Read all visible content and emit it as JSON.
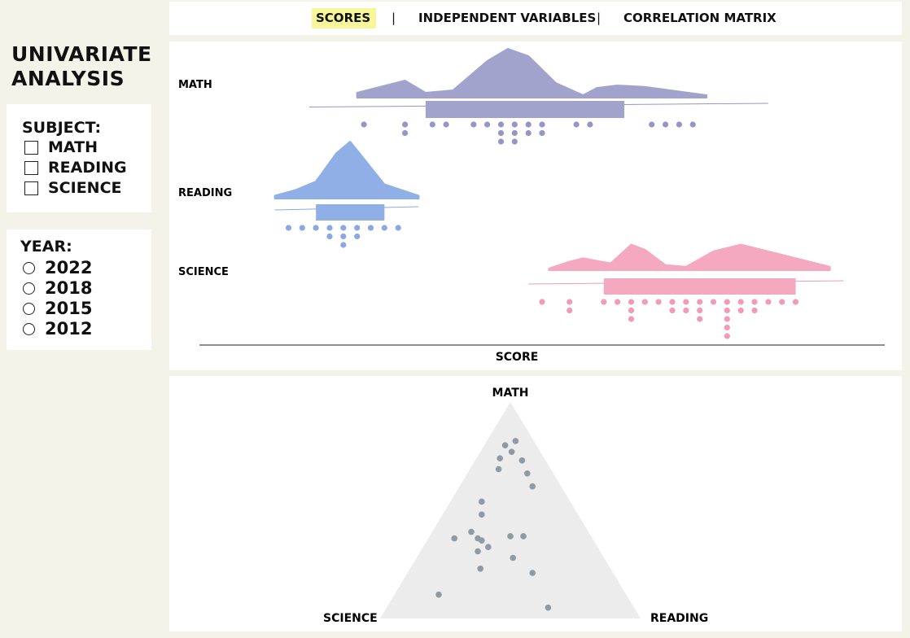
{
  "app": {
    "title": "UNIVARIATE ANALYSIS"
  },
  "nav": {
    "tabs": [
      {
        "label": "SCORES",
        "active": true
      },
      {
        "label": "INDEPENDENT VARIABLES",
        "active": false
      },
      {
        "label": "CORRELATION MATRIX",
        "active": false
      }
    ],
    "separator": "|",
    "highlight_color": "#f7f79a"
  },
  "filters": {
    "subject": {
      "heading": "SUBJECT:",
      "options": [
        {
          "label": "MATH",
          "checked": false
        },
        {
          "label": "READING",
          "checked": false
        },
        {
          "label": "SCIENCE",
          "checked": false
        }
      ]
    },
    "year": {
      "heading": "YEAR:",
      "options": [
        {
          "label": "2022",
          "selected": false
        },
        {
          "label": "2018",
          "selected": false
        },
        {
          "label": "2015",
          "selected": false
        },
        {
          "label": "2012",
          "selected": false
        }
      ]
    }
  },
  "chart_data": [
    {
      "type": "raincloud",
      "title": "",
      "xlabel": "SCORE",
      "ylabel": "",
      "xlim": [
        0,
        100
      ],
      "series": [
        {
          "name": "MATH",
          "color": "#a2a3cc",
          "dots_color": "#9496c6",
          "box": {
            "q1": 33,
            "q3": 62
          },
          "whisker": [
            16,
            83
          ],
          "density": [
            [
              23,
              0.1
            ],
            [
              30,
              0.35
            ],
            [
              33,
              0.1
            ],
            [
              37,
              0.15
            ],
            [
              42,
              0.75
            ],
            [
              45,
              1.0
            ],
            [
              48,
              0.85
            ],
            [
              52,
              0.3
            ],
            [
              56,
              0.05
            ],
            [
              58,
              0.2
            ],
            [
              61,
              0.25
            ],
            [
              65,
              0.22
            ],
            [
              74,
              0.05
            ]
          ],
          "points": [
            24,
            30,
            30,
            34,
            36,
            40,
            42,
            44,
            44,
            44,
            46,
            46,
            46,
            48,
            48,
            50,
            50,
            55,
            57,
            66,
            68,
            70,
            72
          ]
        },
        {
          "name": "READING",
          "color": "#90afe6",
          "dots_color": "#8aa9e4",
          "box": {
            "q1": 17,
            "q3": 27
          },
          "whisker": [
            11,
            32
          ],
          "density": [
            [
              11,
              0.05
            ],
            [
              14,
              0.15
            ],
            [
              17,
              0.3
            ],
            [
              20,
              0.8
            ],
            [
              22,
              1.0
            ],
            [
              24,
              0.7
            ],
            [
              27,
              0.25
            ],
            [
              32,
              0.05
            ]
          ],
          "points": [
            13,
            15,
            17,
            19,
            19,
            21,
            21,
            21,
            23,
            23,
            25,
            27,
            29
          ]
        },
        {
          "name": "SCIENCE",
          "color": "#f4a9c0",
          "dots_color": "#f19bb7",
          "box": {
            "q1": 59,
            "q3": 87
          },
          "whisker": [
            48,
            94
          ],
          "density": [
            [
              51,
              0.05
            ],
            [
              54,
              0.25
            ],
            [
              56,
              0.35
            ],
            [
              60,
              0.2
            ],
            [
              63,
              0.75
            ],
            [
              65,
              0.6
            ],
            [
              68,
              0.15
            ],
            [
              71,
              0.1
            ],
            [
              75,
              0.55
            ],
            [
              79,
              0.75
            ],
            [
              83,
              0.55
            ],
            [
              88,
              0.3
            ],
            [
              92,
              0.1
            ]
          ],
          "points": [
            50,
            54,
            54,
            59,
            61,
            63,
            63,
            63,
            65,
            67,
            69,
            69,
            71,
            71,
            73,
            73,
            73,
            75,
            77,
            77,
            77,
            77,
            77,
            79,
            79,
            81,
            81,
            83,
            85,
            87
          ]
        }
      ]
    },
    {
      "type": "ternary",
      "title": "",
      "axes": [
        "MATH",
        "READING",
        "SCIENCE"
      ],
      "fill_color": "#ececec",
      "point_color": "#8f9aa3",
      "points": [
        [
          0.82,
          0.11,
          0.07
        ],
        [
          0.8,
          0.08,
          0.12
        ],
        [
          0.77,
          0.12,
          0.11
        ],
        [
          0.74,
          0.09,
          0.17
        ],
        [
          0.73,
          0.18,
          0.09
        ],
        [
          0.69,
          0.11,
          0.2
        ],
        [
          0.67,
          0.23,
          0.1
        ],
        [
          0.61,
          0.28,
          0.11
        ],
        [
          0.54,
          0.12,
          0.34
        ],
        [
          0.48,
          0.15,
          0.37
        ],
        [
          0.4,
          0.15,
          0.45
        ],
        [
          0.37,
          0.1,
          0.53
        ],
        [
          0.38,
          0.31,
          0.31
        ],
        [
          0.38,
          0.36,
          0.26
        ],
        [
          0.37,
          0.19,
          0.44
        ],
        [
          0.36,
          0.21,
          0.43
        ],
        [
          0.33,
          0.25,
          0.42
        ],
        [
          0.31,
          0.22,
          0.47
        ],
        [
          0.28,
          0.37,
          0.35
        ],
        [
          0.23,
          0.27,
          0.5
        ],
        [
          0.21,
          0.48,
          0.31
        ],
        [
          0.11,
          0.17,
          0.72
        ],
        [
          0.05,
          0.62,
          0.33
        ]
      ]
    }
  ]
}
